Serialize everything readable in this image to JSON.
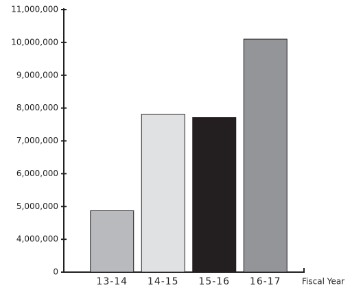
{
  "chart_data": {
    "type": "bar",
    "categories": [
      "13-14",
      "14-15",
      "15-16",
      "16-17"
    ],
    "values": [
      4870000,
      7810000,
      7710000,
      10100000
    ],
    "colors": [
      "#b9babd",
      "#e0e1e3",
      "#231f20",
      "#939598"
    ],
    "x_label": "Fiscal Year",
    "ylim": [
      0,
      11000000
    ],
    "yticks": [
      {
        "value": 0,
        "label": "0"
      },
      {
        "value": 4000000,
        "label": "4,000,000"
      },
      {
        "value": 5000000,
        "label": "5,000,000"
      },
      {
        "value": 6000000,
        "label": "6,000,000"
      },
      {
        "value": 7000000,
        "label": "7,000,000"
      },
      {
        "value": 8000000,
        "label": "8,000,000"
      },
      {
        "value": 9000000,
        "label": "9,000,000"
      },
      {
        "value": 10000000,
        "label": "10,000,000"
      },
      {
        "value": 11000000,
        "label": "11,000,000"
      }
    ],
    "grid": false
  }
}
